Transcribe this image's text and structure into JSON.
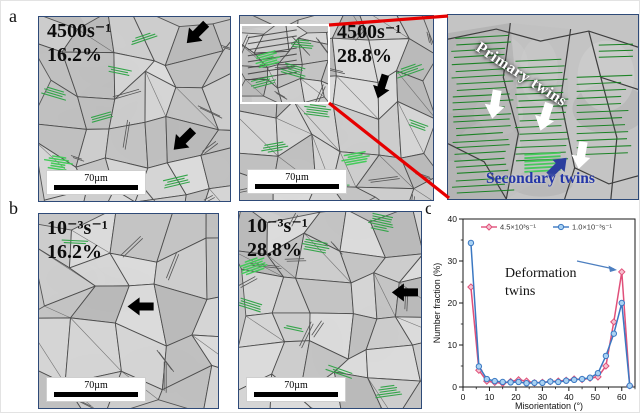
{
  "labels": {
    "a": "a",
    "b": "b",
    "c": "c"
  },
  "panels": {
    "a1": {
      "rate": "4500s⁻¹",
      "strain": "16.2%",
      "scale_bar": "70µm"
    },
    "a2": {
      "rate": "4500s⁻¹",
      "strain": "28.8%",
      "scale_bar": "70µm"
    },
    "a3": {
      "primary_label": "Primary twins",
      "secondary_label": "Secondary twins"
    },
    "b1": {
      "rate": "10⁻³s⁻¹",
      "strain": "16.2%",
      "scale_bar": "70µm"
    },
    "b2": {
      "rate": "10⁻³s⁻¹",
      "strain": "28.8%",
      "scale_bar": "70µm"
    }
  },
  "colors": {
    "panel_border": "#2e4a78",
    "callout_red": "#e60000",
    "twin_green": "#2da344",
    "secondary_twins_text": "#2436a8"
  },
  "chart_data": {
    "type": "line",
    "title": "",
    "xlabel": "Misorientation (°)",
    "ylabel": "Number fraction (%)",
    "xlim": [
      0,
      65
    ],
    "ylim": [
      0,
      40
    ],
    "xticks": [
      0,
      10,
      20,
      30,
      40,
      50,
      60
    ],
    "yticks": [
      0,
      10,
      20,
      30,
      40
    ],
    "grid": false,
    "legend_position": "top-center",
    "x": [
      3,
      6,
      9,
      12,
      15,
      18,
      21,
      24,
      27,
      30,
      33,
      36,
      39,
      42,
      45,
      48,
      51,
      54,
      57,
      60,
      63
    ],
    "series": [
      {
        "name": "4.5×10³s⁻¹",
        "color": "#e0507a",
        "fill": "#f5c2d0",
        "marker": "diamond",
        "values": [
          23.8,
          4.0,
          1.4,
          1.1,
          0.9,
          1.3,
          1.7,
          1.4,
          1.0,
          1.1,
          1.3,
          1.4,
          1.6,
          1.9,
          1.8,
          2.1,
          2.4,
          5.0,
          15.5,
          27.4,
          0.3
        ]
      },
      {
        "name": "1.0×10⁻³s⁻¹",
        "color": "#3b78c2",
        "fill": "#a9d2f3",
        "marker": "circle",
        "values": [
          34.3,
          4.9,
          1.9,
          1.4,
          1.2,
          1.1,
          1.2,
          0.9,
          1.0,
          1.0,
          1.3,
          1.2,
          1.5,
          1.7,
          1.9,
          2.2,
          3.3,
          7.4,
          12.7,
          20.0,
          0.3
        ]
      }
    ],
    "annotation": "Deformation twins",
    "annotation_arrow_color": "#4d7fc0"
  }
}
